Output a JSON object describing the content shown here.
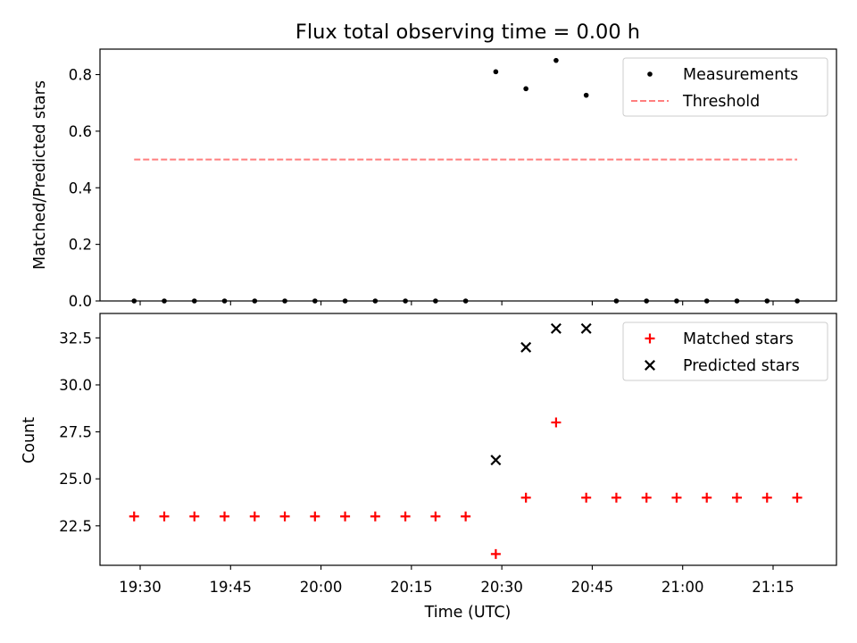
{
  "chart_data": [
    {
      "type": "scatter",
      "title": "Flux total observing time = 0.00 h",
      "xlabel": "",
      "ylabel": "Matched/Predicted stars",
      "ylim": [
        0.0,
        0.89
      ],
      "yticks": [
        "0.0",
        "0.2",
        "0.4",
        "0.6",
        "0.8"
      ],
      "grid": false,
      "legend_position": "top-right",
      "series": [
        {
          "name": "Measurements",
          "kind": "scatter",
          "marker": "dot",
          "color": "#000000",
          "x": [
            "19:29",
            "19:34",
            "19:39",
            "19:44",
            "19:49",
            "19:54",
            "19:59",
            "20:04",
            "20:09",
            "20:14",
            "20:19",
            "20:24",
            "20:29",
            "20:34",
            "20:39",
            "20:44",
            "20:49",
            "20:54",
            "20:59",
            "21:04",
            "21:09",
            "21:14",
            "21:19"
          ],
          "y": [
            0,
            0,
            0,
            0,
            0,
            0,
            0,
            0,
            0,
            0,
            0,
            0,
            0.81,
            0.75,
            0.85,
            0.727,
            0,
            0,
            0,
            0,
            0,
            0,
            0
          ]
        },
        {
          "name": "Threshold",
          "kind": "line",
          "style": "dashed",
          "color": "#ff7f7f",
          "x": [
            "19:29",
            "21:19"
          ],
          "y": [
            0.5,
            0.5
          ]
        }
      ]
    },
    {
      "type": "scatter",
      "title": "",
      "xlabel": "Time (UTC)",
      "ylabel": "Count",
      "ylim": [
        20.4,
        33.8
      ],
      "yticks": [
        "22.5",
        "25.0",
        "27.5",
        "30.0",
        "32.5"
      ],
      "xticks": [
        "19:30",
        "19:45",
        "20:00",
        "20:15",
        "20:30",
        "20:45",
        "21:00",
        "21:15"
      ],
      "grid": false,
      "legend_position": "top-right",
      "series": [
        {
          "name": "Matched stars",
          "kind": "scatter",
          "marker": "plus",
          "color": "#ff0000",
          "x": [
            "19:29",
            "19:34",
            "19:39",
            "19:44",
            "19:49",
            "19:54",
            "19:59",
            "20:04",
            "20:09",
            "20:14",
            "20:19",
            "20:24",
            "20:29",
            "20:34",
            "20:39",
            "20:44",
            "20:49",
            "20:54",
            "20:59",
            "21:04",
            "21:09",
            "21:14",
            "21:19"
          ],
          "y": [
            23,
            23,
            23,
            23,
            23,
            23,
            23,
            23,
            23,
            23,
            23,
            23,
            21,
            24,
            28,
            24,
            24,
            24,
            24,
            24,
            24,
            24,
            24
          ]
        },
        {
          "name": "Predicted stars",
          "kind": "scatter",
          "marker": "x",
          "color": "#000000",
          "x": [
            "20:29",
            "20:34",
            "20:39",
            "20:44"
          ],
          "y": [
            26,
            32,
            33,
            33
          ]
        }
      ]
    }
  ]
}
